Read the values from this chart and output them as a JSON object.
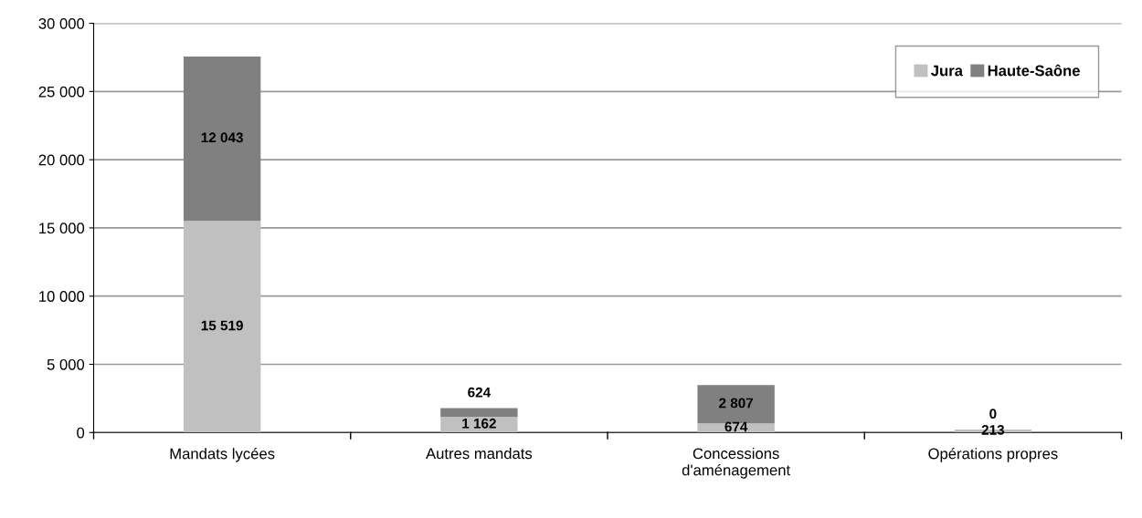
{
  "chart_data": {
    "type": "bar",
    "stacked": true,
    "categories": [
      "Mandats lycées",
      "Autres mandats",
      "Concessions\nd'aménagement",
      "Opérations propres"
    ],
    "series": [
      {
        "name": "Jura",
        "color": "#c0c0c0",
        "values": [
          15519,
          1162,
          674,
          213
        ],
        "value_labels": [
          "15 519",
          "1 162",
          "674",
          "213"
        ]
      },
      {
        "name": "Haute-Saône",
        "color": "#808080",
        "values": [
          12043,
          624,
          2807,
          0
        ],
        "value_labels": [
          "12 043",
          "624",
          "2 807",
          "0"
        ]
      }
    ],
    "ylim": [
      0,
      30000
    ],
    "yticks": [
      {
        "value": 0,
        "label": "0"
      },
      {
        "value": 5000,
        "label": "5 000"
      },
      {
        "value": 10000,
        "label": "10 000"
      },
      {
        "value": 15000,
        "label": "15 000"
      },
      {
        "value": 20000,
        "label": "20 000"
      },
      {
        "value": 25000,
        "label": "25 000"
      },
      {
        "value": 30000,
        "label": "30 000"
      }
    ],
    "grid": "y",
    "legend": "top right"
  }
}
